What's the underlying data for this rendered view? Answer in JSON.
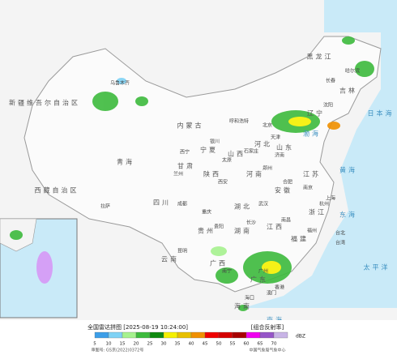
{
  "map": {
    "places": [
      "乌鲁木齐",
      "新疆维吾尔自治区",
      "西藏自治区",
      "拉萨",
      "青海",
      "西宁",
      "甘肃",
      "兰州",
      "内蒙古",
      "呼和浩特",
      "宁夏",
      "银川",
      "黑龙江",
      "哈尔滨",
      "吉林",
      "长春",
      "辽宁",
      "沈阳",
      "北京",
      "天津",
      "河北",
      "石家庄",
      "山西",
      "太原",
      "山东",
      "济南",
      "陕西",
      "西安",
      "河南",
      "郑州",
      "四川",
      "成都",
      "重庆",
      "湖北",
      "武汉",
      "安徽",
      "合肥",
      "江苏",
      "南京",
      "上海",
      "浙江",
      "杭州",
      "湖南",
      "长沙",
      "江西",
      "南昌",
      "贵州",
      "贵阳",
      "云南",
      "昆明",
      "广西",
      "南宁",
      "广东",
      "广州",
      "福建",
      "福州",
      "台湾",
      "台北",
      "香港",
      "澳门",
      "海南",
      "海口",
      "渤海",
      "黄海",
      "东海",
      "南海",
      "日本海",
      "太平洋"
    ],
    "legend": {
      "title": "全国雷达拼图 [2025-08-19 10:24:00]",
      "product": "[组合反射率]",
      "unit": "dBZ",
      "levels": [
        5,
        10,
        15,
        20,
        25,
        30,
        35,
        40,
        45,
        50,
        55,
        60,
        65,
        70
      ],
      "colors": [
        "#3c9ee8",
        "#7fd2f5",
        "#a6f28f",
        "#3dba3d",
        "#0f8a0f",
        "#f5f000",
        "#e8c000",
        "#f09000",
        "#f00000",
        "#d40000",
        "#a80000",
        "#f000f0",
        "#9655c8",
        "#c8b4e6"
      ],
      "approval": "审图号: GS京(2022)0372号",
      "source": "中国气象局气象中心"
    }
  }
}
